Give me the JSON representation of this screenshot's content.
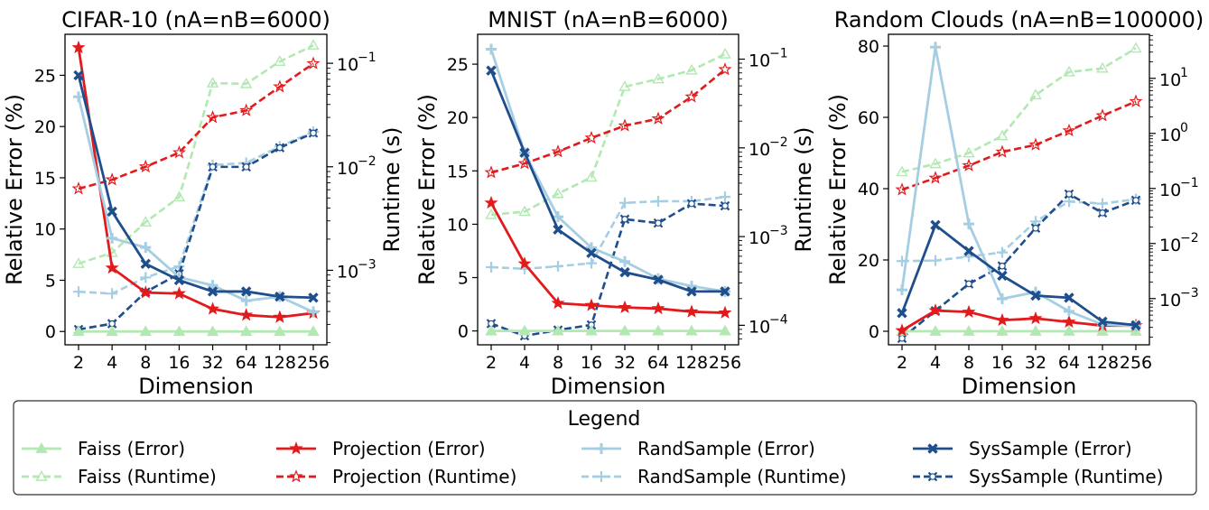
{
  "chart_data": {
    "type": "line",
    "dual_axis": true,
    "x": [
      2,
      4,
      8,
      16,
      32,
      64,
      128,
      256
    ],
    "x_tick_labels": [
      "2",
      "4",
      "8",
      "16",
      "32",
      "64",
      "128",
      "256"
    ],
    "xlabel": "Dimension",
    "ylabel_left": "Relative Error (%)",
    "ylabel_right": "Runtime (s)",
    "series_meta": [
      {
        "name": "Faiss",
        "color": "#b2e8b2",
        "marker": "triangle"
      },
      {
        "name": "Projection",
        "color": "#e31a1c",
        "marker": "star"
      },
      {
        "name": "RandSample",
        "color": "#a6cee3",
        "marker": "plus"
      },
      {
        "name": "SysSample",
        "color": "#1f4e8c",
        "marker": "x"
      }
    ],
    "panels": [
      {
        "title": "CIFAR-10 (nA=nB=6000)",
        "error_ylim": [
          -1.3,
          29
        ],
        "error_ticks": [
          0,
          5,
          10,
          15,
          20,
          25
        ],
        "runtime_log_range": [
          -3.72,
          -0.72
        ],
        "runtime_ticks": [
          {
            "exp": -3,
            "base": "10",
            "sup": "−3"
          },
          {
            "exp": -2,
            "base": "10",
            "sup": "−2"
          },
          {
            "exp": -1,
            "base": "10",
            "sup": "−1"
          }
        ],
        "error": {
          "Faiss": [
            0,
            0,
            0,
            0,
            0,
            0,
            0,
            0
          ],
          "Projection": [
            27.7,
            6.2,
            3.8,
            3.7,
            2.2,
            1.6,
            1.4,
            1.8
          ],
          "RandSample": [
            22.9,
            9.1,
            8.2,
            5.3,
            4.5,
            3.0,
            3.4,
            1.9
          ],
          "SysSample": [
            25.0,
            11.7,
            6.6,
            5.0,
            3.9,
            3.9,
            3.4,
            3.3
          ]
        },
        "runtime": {
          "Faiss": [
            0.00116,
            0.00148,
            0.00292,
            0.0051,
            0.0643,
            0.0633,
            0.104,
            0.149
          ],
          "Projection": [
            0.00614,
            0.0075,
            0.01001,
            0.01372,
            0.03,
            0.035,
            0.0593,
            0.0994
          ],
          "RandSample": [
            0.000621,
            0.000595,
            0.000852,
            0.00109,
            0.0104,
            0.0109,
            0.0157,
            0.0218
          ],
          "SysSample": [
            0.000268,
            0.000305,
            0.000617,
            0.000925,
            0.00998,
            0.00998,
            0.0153,
            0.0212
          ]
        }
      },
      {
        "title": "MNIST (nA=nB=6000)",
        "error_ylim": [
          -1.3,
          27.8
        ],
        "error_ticks": [
          0,
          5,
          10,
          15,
          20,
          25
        ],
        "runtime_log_range": [
          -4.22,
          -0.72
        ],
        "runtime_ticks": [
          {
            "exp": -4,
            "base": "10",
            "sup": "−4"
          },
          {
            "exp": -3,
            "base": "10",
            "sup": "−3"
          },
          {
            "exp": -2,
            "base": "10",
            "sup": "−2"
          },
          {
            "exp": -1,
            "base": "10",
            "sup": "−1"
          }
        ],
        "error": {
          "Faiss": [
            0,
            0,
            0,
            0,
            0,
            0,
            0,
            0
          ],
          "Projection": [
            12.0,
            6.3,
            2.6,
            2.4,
            2.2,
            2.1,
            1.8,
            1.7
          ],
          "RandSample": [
            26.4,
            16.7,
            10.7,
            7.8,
            6.5,
            4.9,
            4.2,
            3.7
          ],
          "SysSample": [
            24.4,
            16.7,
            9.5,
            7.3,
            5.5,
            4.8,
            3.7,
            3.7
          ]
        },
        "runtime": {
          "Faiss": [
            0.00176,
            0.00191,
            0.00304,
            0.00466,
            0.0489,
            0.0597,
            0.0749,
            0.114
          ],
          "Projection": [
            0.00527,
            0.00666,
            0.00906,
            0.01293,
            0.01776,
            0.0213,
            0.0376,
            0.0764
          ],
          "RandSample": [
            0.000452,
            0.000433,
            0.000462,
            0.000501,
            0.0024,
            0.0025,
            0.0025,
            0.0028
          ],
          "SysSample": [
            0.0001045,
            7.59e-05,
            8.85e-05,
            0.000101,
            0.00157,
            0.00142,
            0.00235,
            0.00222
          ]
        }
      },
      {
        "title": "Random Clouds (nA=nB=100000)",
        "error_ylim": [
          -3.8,
          83.3
        ],
        "error_ticks": [
          0,
          20,
          40,
          60,
          80
        ],
        "runtime_log_range": [
          -3.84,
          1.8
        ],
        "runtime_ticks": [
          {
            "exp": -3,
            "base": "10",
            "sup": "−3"
          },
          {
            "exp": -2,
            "base": "10",
            "sup": "−2"
          },
          {
            "exp": -1,
            "base": "10",
            "sup": "−1"
          },
          {
            "exp": 0,
            "base": "10",
            "sup": "0"
          },
          {
            "exp": 1,
            "base": "10",
            "sup": "1"
          }
        ],
        "error": {
          "Faiss": [
            0,
            0,
            0,
            0,
            0,
            0,
            0,
            0
          ],
          "Projection": [
            0.2,
            5.8,
            5.4,
            3.1,
            3.6,
            2.6,
            1.6,
            1.6
          ],
          "RandSample": [
            11.6,
            79.7,
            30.1,
            9.1,
            11.0,
            5.6,
            1.9,
            1.5
          ],
          "SysSample": [
            5.1,
            29.8,
            22.5,
            15.6,
            10.0,
            9.4,
            2.7,
            1.7
          ]
        },
        "runtime": {
          "Faiss": [
            0.2,
            0.28,
            0.44,
            0.9,
            5.0,
            13.0,
            15.2,
            35.2
          ],
          "Projection": [
            0.095,
            0.155,
            0.26,
            0.46,
            0.62,
            1.12,
            2.1,
            3.8
          ],
          "RandSample": [
            0.0048,
            0.0049,
            0.0058,
            0.0069,
            0.0252,
            0.058,
            0.053,
            0.064
          ],
          "SysSample": [
            0.00019,
            0.0006,
            0.00185,
            0.0039,
            0.019,
            0.079,
            0.036,
            0.061
          ]
        }
      }
    ],
    "legend": {
      "title": "Legend",
      "position": "bottom-center",
      "entries": [
        "Faiss (Error)",
        "Faiss (Runtime)",
        "Projection (Error)",
        "Projection (Runtime)",
        "RandSample (Error)",
        "RandSample (Runtime)",
        "SysSample (Error)",
        "SysSample (Runtime)"
      ]
    }
  }
}
